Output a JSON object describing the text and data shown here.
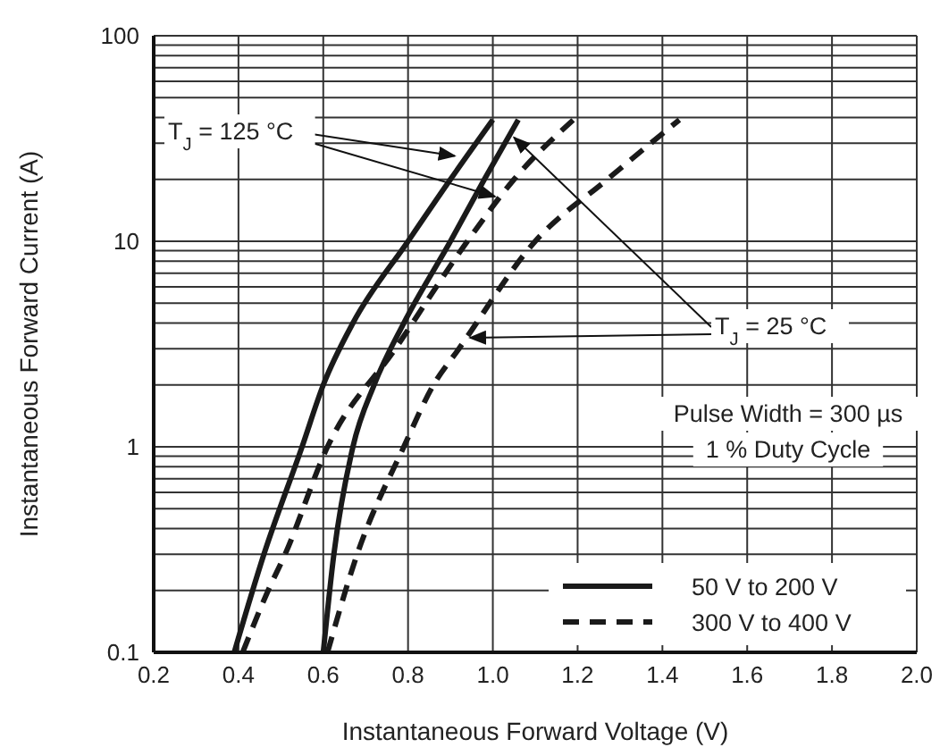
{
  "chart_data": {
    "type": "line",
    "xlabel": "Instantaneous Forward Voltage (V)",
    "ylabel": "Instantaneous Forward Current (A)",
    "xlim": [
      0.2,
      2.0
    ],
    "xticks": [
      0.2,
      0.4,
      0.6,
      0.8,
      {
        "value": 1,
        "label": "1.0"
      },
      1.2,
      1.4,
      1.6,
      1.8,
      {
        "value": 2,
        "label": "2.0"
      }
    ],
    "ylim": [
      0.1,
      100
    ],
    "yticks": [
      0.1,
      {
        "value": 0.2,
        "label": null
      },
      {
        "value": 0.3,
        "label": null
      },
      {
        "value": 0.4,
        "label": null
      },
      {
        "value": 0.5,
        "label": null
      },
      {
        "value": 0.6,
        "label": null
      },
      {
        "value": 0.7,
        "label": null
      },
      {
        "value": 0.8,
        "label": null
      },
      {
        "value": 0.9,
        "label": null
      },
      1,
      {
        "value": 2,
        "label": null
      },
      {
        "value": 3,
        "label": null
      },
      {
        "value": 4,
        "label": null
      },
      {
        "value": 5,
        "label": null
      },
      {
        "value": 6,
        "label": null
      },
      {
        "value": 7,
        "label": null
      },
      {
        "value": 8,
        "label": null
      },
      {
        "value": 9,
        "label": null
      },
      10,
      {
        "value": 20,
        "label": null
      },
      {
        "value": 30,
        "label": null
      },
      {
        "value": 40,
        "label": null
      },
      {
        "value": 50,
        "label": null
      },
      {
        "value": 60,
        "label": null
      },
      {
        "value": 70,
        "label": null
      },
      {
        "value": 80,
        "label": null
      },
      {
        "value": 90,
        "label": null
      },
      100
    ],
    "log": "y",
    "grid": true,
    "legend": "bottom right",
    "marker": "none",
    "series": [
      {
        "name": "50 V to 200 V",
        "color": "#1a1a1a",
        "line_style": "solid",
        "x": [
          0.39,
          0.46,
          0.55,
          0.6,
          0.67,
          0.8,
          0.9,
          1.0
        ],
        "values": [
          0.1,
          0.3,
          1,
          2,
          4,
          10,
          20,
          39
        ]
      },
      {
        "color": "#1a1a1a",
        "line_style": "solid",
        "x": [
          0.6,
          0.625,
          0.67,
          0.72,
          0.79,
          0.9,
          0.98,
          1.06
        ],
        "values": [
          0.1,
          0.3,
          1,
          2,
          4,
          10,
          20,
          39
        ]
      },
      {
        "name": "300 V to 400 V",
        "color": "#1a1a1a",
        "line_style": "dashed",
        "x": [
          0.41,
          0.47,
          0.51,
          0.61,
          0.77,
          0.94,
          1.05,
          1.19
        ],
        "values": [
          0.1,
          0.2,
          0.3,
          1,
          3,
          10,
          20,
          39
        ]
      },
      {
        "color": "#1a1a1a",
        "line_style": "dashed",
        "x": [
          0.61,
          0.68,
          0.79,
          0.86,
          0.92,
          1.1,
          1.27,
          1.44
        ],
        "values": [
          0.1,
          0.3,
          1,
          2,
          3,
          10,
          20,
          39
        ]
      }
    ],
    "annotations": [
      {
        "text": "T$_{J}$ = 125 °C",
        "x": 0.91,
        "y": 26
      },
      {
        "text": "T$_{J}$ = 25 °C",
        "x": 1.05,
        "y": 32
      },
      "Pulse Width = 300 µs\n1 % Duty Cycle"
    ]
  }
}
